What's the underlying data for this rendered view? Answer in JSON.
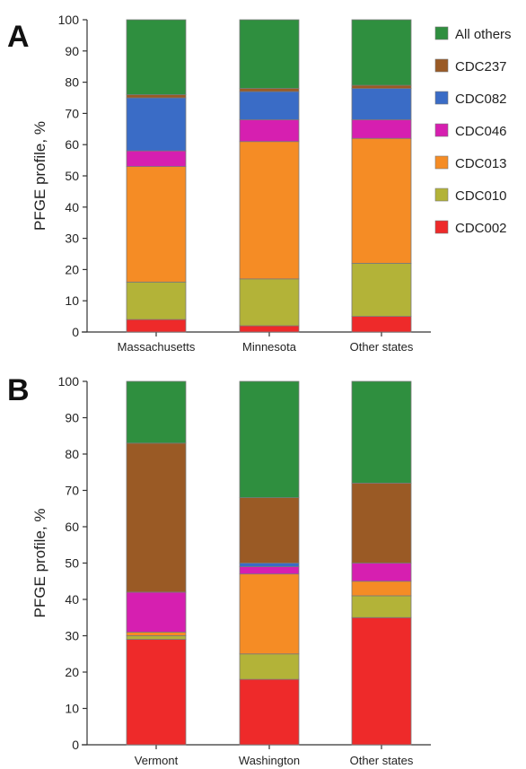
{
  "colors": {
    "CDC002": "#ee2a2a",
    "CDC010": "#b3b338",
    "CDC013": "#f58c25",
    "CDC046": "#d61fb0",
    "CDC082": "#3a6cc6",
    "CDC237": "#9a5a25",
    "All others": "#2f8f3f"
  },
  "legend": {
    "items": [
      "All others",
      "CDC237",
      "CDC082",
      "CDC046",
      "CDC013",
      "CDC010",
      "CDC002"
    ],
    "placement": "right of panel A"
  },
  "chart_data": [
    {
      "panel": "A",
      "type": "bar",
      "stacked": true,
      "ylabel": "PFGE profile, %",
      "ylim": [
        0,
        100
      ],
      "yticks": [
        0,
        10,
        20,
        30,
        40,
        50,
        60,
        70,
        80,
        90,
        100
      ],
      "categories": [
        "Massachusetts",
        "Minnesota",
        "Other states"
      ],
      "series": [
        {
          "name": "CDC002",
          "values": [
            4,
            2,
            5
          ]
        },
        {
          "name": "CDC010",
          "values": [
            12,
            15,
            17
          ]
        },
        {
          "name": "CDC013",
          "values": [
            37,
            44,
            40
          ]
        },
        {
          "name": "CDC046",
          "values": [
            5,
            7,
            6
          ]
        },
        {
          "name": "CDC082",
          "values": [
            17,
            9,
            10
          ]
        },
        {
          "name": "CDC237",
          "values": [
            1,
            1,
            1
          ]
        },
        {
          "name": "All others",
          "values": [
            24,
            22,
            21
          ]
        }
      ]
    },
    {
      "panel": "B",
      "type": "bar",
      "stacked": true,
      "ylabel": "PFGE profile, %",
      "ylim": [
        0,
        100
      ],
      "yticks": [
        0,
        10,
        20,
        30,
        40,
        50,
        60,
        70,
        80,
        90,
        100
      ],
      "categories": [
        "Vermont",
        "Washington",
        "Other states"
      ],
      "series": [
        {
          "name": "CDC002",
          "values": [
            29,
            18,
            35
          ]
        },
        {
          "name": "CDC010",
          "values": [
            1,
            7,
            6
          ]
        },
        {
          "name": "CDC013",
          "values": [
            1,
            22,
            4
          ]
        },
        {
          "name": "CDC046",
          "values": [
            11,
            2,
            5
          ]
        },
        {
          "name": "CDC082",
          "values": [
            0,
            1,
            0
          ]
        },
        {
          "name": "CDC237",
          "values": [
            41,
            18,
            22
          ]
        },
        {
          "name": "All others",
          "values": [
            17,
            32,
            28
          ]
        }
      ]
    }
  ]
}
